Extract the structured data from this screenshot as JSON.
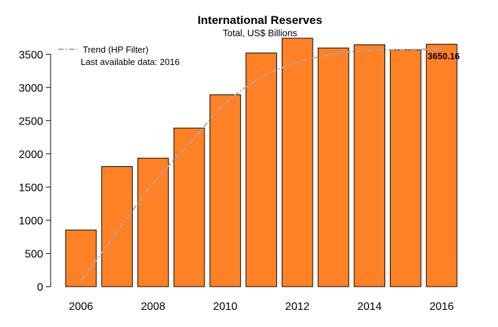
{
  "chart_data": {
    "type": "bar",
    "title": "International Reserves",
    "subtitle": "Total, US$ Billions",
    "xlabel": "",
    "ylabel": "",
    "categories": [
      "2006",
      "2007",
      "2008",
      "2009",
      "2010",
      "2011",
      "2012",
      "2013",
      "2014",
      "2015",
      "2016"
    ],
    "x_tick_labels": [
      "2006",
      "2008",
      "2010",
      "2012",
      "2014",
      "2016"
    ],
    "values": [
      853,
      1808,
      1935,
      2388,
      2889,
      3519,
      3741,
      3594,
      3642,
      3566,
      3650.16
    ],
    "trend": {
      "name": "Trend (HP Filter)",
      "values": [
        90,
        820,
        1560,
        2150,
        2760,
        3150,
        3380,
        3500,
        3560,
        3570,
        3580
      ]
    },
    "ylim": [
      0,
      3750
    ],
    "y_ticks": [
      0,
      500,
      1000,
      1500,
      2000,
      2500,
      3000,
      3500
    ],
    "last_value_label": "3650.16",
    "note": "Last available data: 2016",
    "legend_position": "top-left",
    "grid": false,
    "colors": {
      "bar": "#FF8126",
      "bar_border": "#000000",
      "trend": "#A9A9A9"
    }
  }
}
